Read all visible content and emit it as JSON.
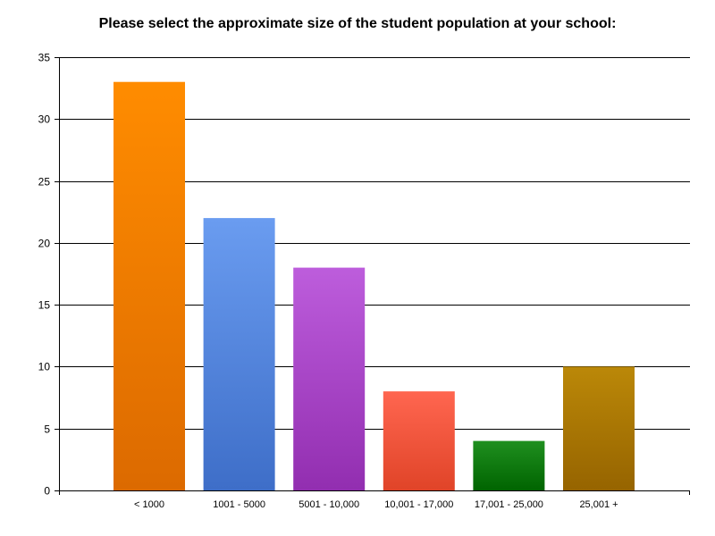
{
  "chart_data": {
    "type": "bar",
    "title": "Please select the approximate size of the student population at your school:",
    "categories": [
      "< 1000",
      "1001 - 5000",
      "5001 - 10,000",
      "10,001 - 17,000",
      "17,001 - 25,000",
      "25,001 +"
    ],
    "values": [
      33,
      22,
      18,
      8,
      4,
      10
    ],
    "ylim": [
      0,
      35
    ],
    "yticks": [
      0,
      5,
      10,
      15,
      20,
      25,
      30,
      35
    ],
    "xlabel": "",
    "ylabel": "",
    "grid": true,
    "legend": "none",
    "bar_colors": [
      [
        "#ff8c00",
        "#dc6a00"
      ],
      [
        "#6a9cf0",
        "#3e6ec8"
      ],
      [
        "#bd5ddc",
        "#922eb0"
      ],
      [
        "#ff6650",
        "#e04428"
      ],
      [
        "#1f8f1f",
        "#006400"
      ],
      [
        "#bb8808",
        "#966400"
      ]
    ]
  }
}
